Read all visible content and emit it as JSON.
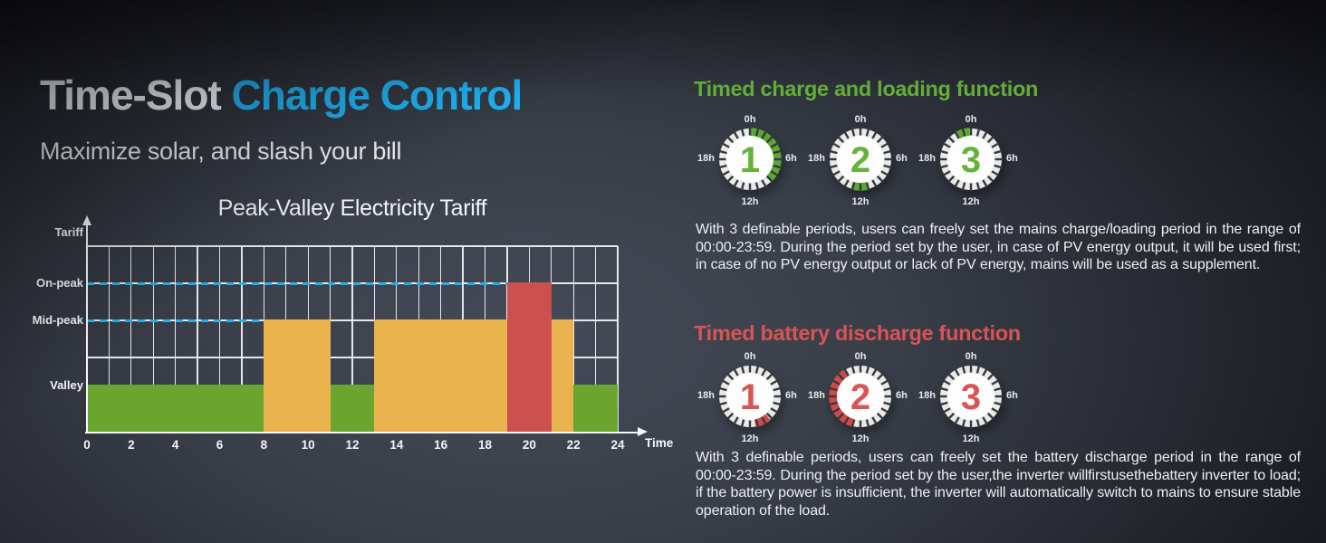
{
  "header": {
    "title_white": "Time-Slot",
    "title_accent": "Charge Control",
    "subtitle": "Maximize solar, and slash your bill"
  },
  "colors": {
    "title_accent_blue": "#1fb3f4",
    "charge_green": "#65b23b",
    "discharge_red": "#d95455",
    "guide_cyan": "#1eb2f2",
    "clock_ring": "#e9e9e6",
    "clock_disc": "#fdfdfd",
    "clock_notch": "#333842"
  },
  "chart_data": {
    "type": "bar",
    "title": "Peak-Valley Electricity Tariff",
    "xlabel": "Time",
    "ylabel": "Tariff",
    "xlim": [
      0,
      24
    ],
    "x_ticks": [
      0,
      2,
      4,
      6,
      8,
      10,
      12,
      14,
      16,
      18,
      20,
      22,
      24
    ],
    "grid": true,
    "level_labels": [
      "On-peak",
      "Mid-peak",
      "Valley"
    ],
    "levels_low_to_high": [
      "Valley",
      "Mid-peak",
      "On-peak"
    ],
    "level_colors": {
      "Valley": "#6ba42f",
      "Mid-peak": "#ebb34d",
      "On-peak": "#cb504e"
    },
    "segments": [
      {
        "from_hour": 0,
        "to_hour": 8,
        "level": "Valley"
      },
      {
        "from_hour": 8,
        "to_hour": 11,
        "level": "Mid-peak"
      },
      {
        "from_hour": 11,
        "to_hour": 13,
        "level": "Valley"
      },
      {
        "from_hour": 13,
        "to_hour": 19,
        "level": "Mid-peak"
      },
      {
        "from_hour": 19,
        "to_hour": 21,
        "level": "On-peak"
      },
      {
        "from_hour": 21,
        "to_hour": 22,
        "level": "Mid-peak"
      },
      {
        "from_hour": 22,
        "to_hour": 24,
        "level": "Valley"
      }
    ],
    "dashed_guides": [
      {
        "level": "On-peak",
        "from_hour": 0,
        "to_hour": 19
      },
      {
        "level": "Mid-peak",
        "from_hour": 0,
        "to_hour": 8
      }
    ]
  },
  "sections": [
    {
      "heading": "Timed charge and loading function",
      "accent": "#65b23b",
      "accent_arc": "#5aa82d",
      "clock_labels": {
        "top": "0h",
        "right": "6h",
        "bottom": "12h",
        "left": "18h"
      },
      "clocks": [
        {
          "number": "1",
          "arcs_deg": [
            [
              0,
              135
            ]
          ]
        },
        {
          "number": "2",
          "arcs_deg": [
            [
              167,
              198
            ]
          ]
        },
        {
          "number": "3",
          "arcs_deg": [
            [
              332,
              357
            ]
          ]
        }
      ],
      "body": "With 3 definable periods, users can freely set the mains charge/loading period in the range of 00:00-23:59. During the period set by the user, in case of PV energy output, it will be used first; in case of no PV energy output or lack of PV energy, mains will be used as a supplement."
    },
    {
      "heading": "Timed battery discharge function",
      "accent": "#d95455",
      "accent_arc": "#d04b47",
      "clock_labels": {
        "top": "0h",
        "right": "6h",
        "bottom": "12h",
        "left": "18h"
      },
      "clocks": [
        {
          "number": "1",
          "arcs_deg": [
            [
              139,
              169
            ]
          ]
        },
        {
          "number": "2",
          "arcs_deg": [
            [
              196,
              331
            ]
          ]
        },
        {
          "number": "3",
          "arcs_deg": []
        }
      ],
      "body": "With 3 definable periods, users can freely set the battery discharge period in the range of 00:00-23:59. During the period set by the user,the inverter willfirstusethebattery inverter to load; if the battery power is insufficient, the inverter will automatically switch to mains to ensure stable operation of the load."
    }
  ]
}
